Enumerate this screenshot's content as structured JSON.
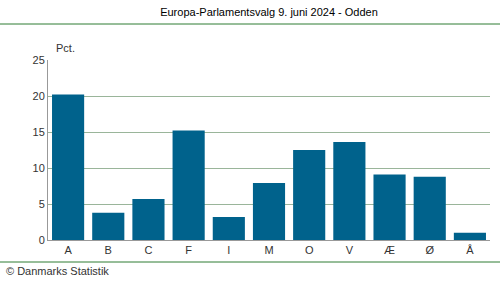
{
  "chart_data": {
    "type": "bar",
    "title": "Europa-Parlamentsvalg 9. juni 2024 - Odden",
    "ylabel": "Pct.",
    "annotations": [
      "© Danmarks Statistik"
    ],
    "categories": [
      "A",
      "B",
      "C",
      "F",
      "I",
      "M",
      "O",
      "V",
      "Æ",
      "Ø",
      "Å"
    ],
    "values": [
      20.2,
      3.8,
      5.7,
      15.2,
      3.2,
      7.9,
      12.5,
      13.6,
      9.1,
      8.8,
      1.0
    ],
    "color": "#00628c",
    "ylim": [
      0,
      25
    ],
    "yticks": [
      0,
      5,
      10,
      15,
      20,
      25
    ],
    "grid": true
  }
}
